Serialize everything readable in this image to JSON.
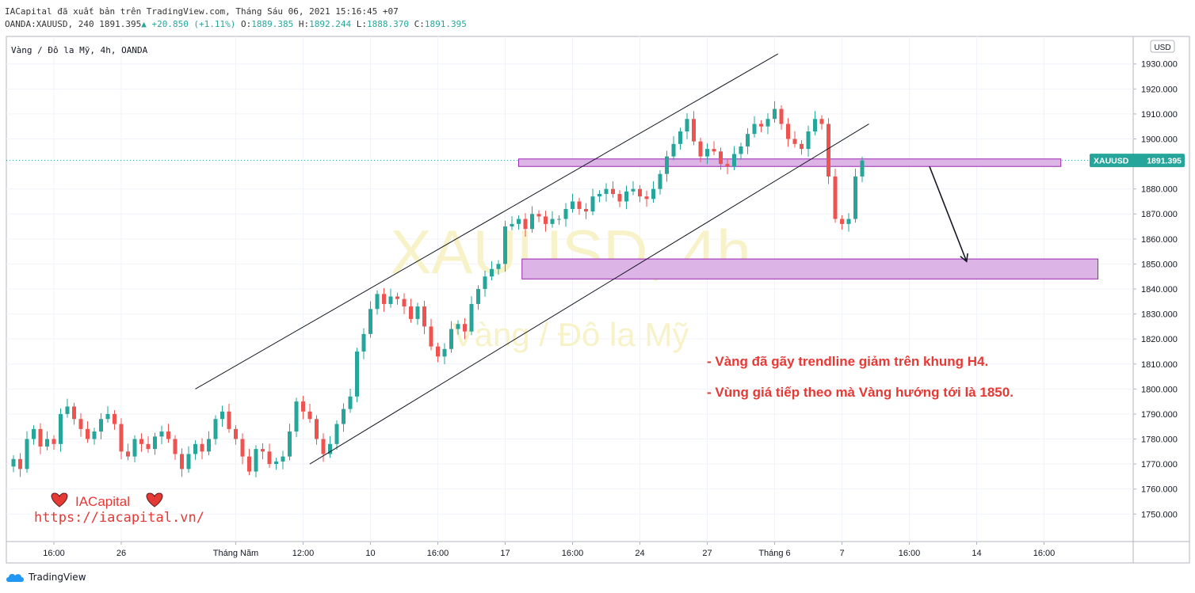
{
  "header": {
    "line1": "IACapital đã xuất bản trên TradingView.com, Tháng Sáu 06, 2021 15:16:45 +07",
    "symbol": "OANDA:XAUUSD, 240",
    "last": "1891.395",
    "change": "+20.850 (+1.11%)",
    "o_label": "O:",
    "o_value": "1889.385",
    "h_label": "H:",
    "h_value": "1892.244",
    "l_label": "L:",
    "l_value": "1888.370",
    "c_label": "C:",
    "c_value": "1891.395"
  },
  "chart_title": "Vàng / Đô la Mỹ, 4h, OANDA",
  "currency": "USD",
  "watermark": {
    "line1": "XAUUSD, 4h",
    "line2": "Vàng / Đô la Mỹ"
  },
  "price_tag": {
    "symbol": "XAUUSD",
    "value": "1891.395"
  },
  "annotations": [
    "- Vàng đã gãy trendline giảm trên khung H4.",
    "- Vùng giá tiếp theo mà Vàng hướng tới là 1850."
  ],
  "brand": {
    "name": "IACapital",
    "url": "https://iacapital.vn/"
  },
  "footer": {
    "logo_text": "TradingView"
  },
  "colors": {
    "up": "#26a69a",
    "down": "#ef5350",
    "zone_fill": "#dcb4e6",
    "zone_stroke": "#9c27b0",
    "annotation": "#e53935"
  },
  "chart_data": {
    "type": "candlestick",
    "symbol": "XAUUSD",
    "timeframe": "4h",
    "y_ticks": [
      1750,
      1760,
      1770,
      1780,
      1790,
      1800,
      1810,
      1820,
      1830,
      1840,
      1850,
      1860,
      1870,
      1880,
      1890,
      1900,
      1910,
      1920,
      1930
    ],
    "y_tick_labels": [
      "1750.000",
      "1760.000",
      "1770.000",
      "1780.000",
      "1790.000",
      "1800.000",
      "1810.000",
      "1820.000",
      "1830.000",
      "1840.000",
      "1850.000",
      "1860.000",
      "1870.000",
      "1880.000",
      "1890.000",
      "1900.000",
      "1910.000",
      "1920.000",
      "1930.000"
    ],
    "ylim": [
      1739,
      1941
    ],
    "x_ticks": [
      {
        "label": "16:00",
        "bar": 6
      },
      {
        "label": "26",
        "bar": 16
      },
      {
        "label": "Tháng Năm",
        "bar": 33
      },
      {
        "label": "12:00",
        "bar": 43
      },
      {
        "label": "10",
        "bar": 53
      },
      {
        "label": "16:00",
        "bar": 63
      },
      {
        "label": "17",
        "bar": 73
      },
      {
        "label": "16:00",
        "bar": 83
      },
      {
        "label": "24",
        "bar": 93
      },
      {
        "label": "27",
        "bar": 103
      },
      {
        "label": "Tháng 6",
        "bar": 113
      },
      {
        "label": "7",
        "bar": 123
      },
      {
        "label": "16:00",
        "bar": 133
      },
      {
        "label": "14",
        "bar": 143
      },
      {
        "label": "16:00",
        "bar": 153
      }
    ],
    "closes": [
      1772,
      1768,
      1780,
      1784,
      1777,
      1780,
      1778,
      1790,
      1793,
      1788,
      1784,
      1780,
      1783,
      1788,
      1790,
      1786,
      1775,
      1773,
      1780,
      1778,
      1776,
      1781,
      1783,
      1780,
      1774,
      1768,
      1774,
      1778,
      1775,
      1780,
      1788,
      1791,
      1784,
      1780,
      1773,
      1767,
      1776,
      1775,
      1770,
      1771,
      1773,
      1783,
      1795,
      1791,
      1788,
      1780,
      1774,
      1778,
      1786,
      1792,
      1797,
      1815,
      1822,
      1832,
      1838,
      1834,
      1837,
      1836,
      1833,
      1828,
      1833,
      1825,
      1817,
      1813,
      1816,
      1824,
      1826,
      1823,
      1834,
      1840,
      1845,
      1848,
      1850,
      1865,
      1866,
      1868,
      1864,
      1870,
      1869,
      1866,
      1868,
      1868,
      1872,
      1875,
      1872,
      1871,
      1877,
      1878,
      1880,
      1878,
      1875,
      1879,
      1880,
      1877,
      1876,
      1880,
      1886,
      1893,
      1898,
      1903,
      1908,
      1899,
      1893,
      1896,
      1895,
      1890,
      1889,
      1894,
      1897,
      1902,
      1906,
      1905,
      1908,
      1912,
      1906,
      1900,
      1898,
      1896,
      1903,
      1908,
      1906,
      1885,
      1868,
      1866,
      1868,
      1885,
      1891.4
    ],
    "channel_upper": {
      "start": {
        "bar": 27,
        "price": 1800
      },
      "end": {
        "bar": 113.5,
        "price": 1934
      }
    },
    "channel_lower": {
      "start": {
        "bar": 44,
        "price": 1770
      },
      "end": {
        "bar": 127,
        "price": 1906
      }
    },
    "zone_resistance": {
      "bar_start": 75,
      "bar_end": 155.5,
      "top": 1892,
      "bottom": 1889
    },
    "zone_target": {
      "bar_start": 75.5,
      "bar_end": 161,
      "top": 1852,
      "bottom": 1844
    },
    "arrow": {
      "from": {
        "bar": 136,
        "price": 1889
      },
      "to": {
        "bar": 141.5,
        "price": 1851
      }
    },
    "last_price": 1891.395
  }
}
